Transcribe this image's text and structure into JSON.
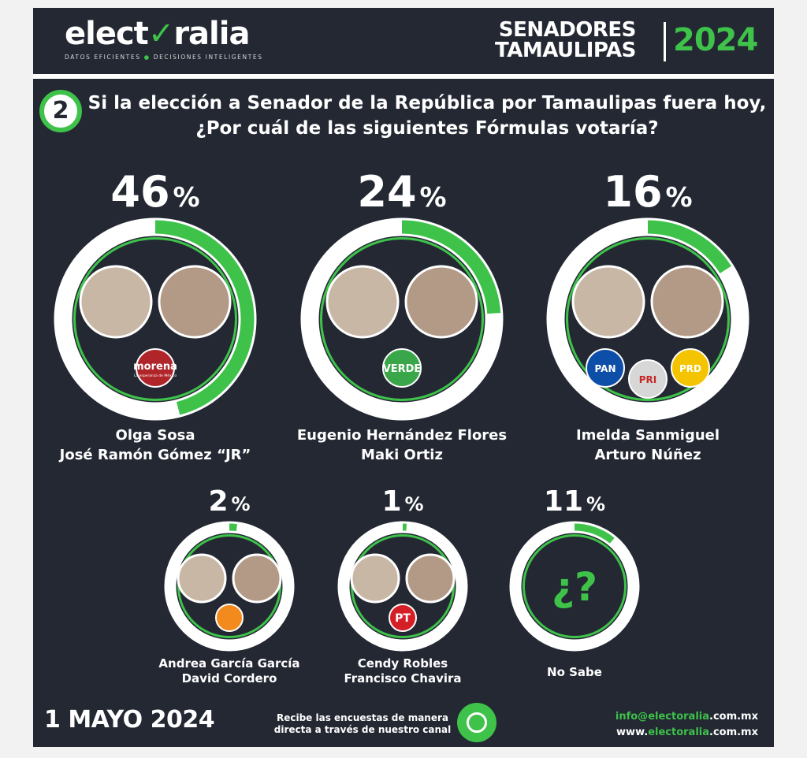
{
  "header": {
    "logo_pre": "elect",
    "logo_check": "✓",
    "logo_post": "ralia",
    "tagline_a": "DATOS EFICIENTES",
    "tagline_b": "DECISIONES INTELIGENTES",
    "title_line1": "SENADORES",
    "title_line2": "TAMAULIPAS",
    "year": "2024"
  },
  "question": {
    "number": "2",
    "line1": "Si la elección a Senador de la República por Tamaulipas fuera hoy,",
    "line2": "¿Por cuál de las siguientes Fórmulas votaría?"
  },
  "colors": {
    "accent": "#3ec24a",
    "background": "#232833",
    "ring": "#ffffff",
    "text": "#ffffff"
  },
  "chart_data": {
    "type": "pie",
    "unit": "%",
    "max": 100,
    "items": [
      {
        "value": 46,
        "line1": "Olga Sosa",
        "line2": "José Ramón Gómez “JR”",
        "parties": [
          {
            "label": "morena",
            "sub": "La esperanza de México",
            "color": "#b0252a"
          }
        ]
      },
      {
        "value": 24,
        "line1": "Eugenio Hernández Flores",
        "line2": "Maki Ortiz",
        "parties": [
          {
            "label": "VERDE",
            "sub": "",
            "color": "#3aa64a"
          }
        ]
      },
      {
        "value": 16,
        "line1": "Imelda Sanmiguel",
        "line2": "Arturo Núñez",
        "parties": [
          {
            "label": "PAN",
            "sub": "",
            "color": "#0d4fa8"
          },
          {
            "label": "PRI",
            "sub": "",
            "color": "#d7d7d7"
          },
          {
            "label": "PRD",
            "sub": "",
            "color": "#f5c400"
          }
        ]
      },
      {
        "value": 2,
        "line1": "Andrea García García",
        "line2": "David Cordero",
        "parties": [
          {
            "label": "",
            "sub": "",
            "color": "#f28a1e"
          }
        ]
      },
      {
        "value": 1,
        "line1": "Cendy Robles",
        "line2": "Francisco Chavira",
        "parties": [
          {
            "label": "PT",
            "sub": "",
            "color": "#d41f26"
          }
        ]
      },
      {
        "value": 11,
        "line1": "No Sabe",
        "line2": "",
        "parties": []
      }
    ]
  },
  "footer": {
    "date": "1 MAYO 2024",
    "receive_line1": "Recibe las encuestas de manera",
    "receive_line2": "directa a través de nuestro canal",
    "email_pre": "info@",
    "email_domain": "electoralia",
    "email_tld": ".com.mx",
    "web_pre": "www.",
    "web_domain": "electoralia",
    "web_tld": ".com.mx"
  }
}
